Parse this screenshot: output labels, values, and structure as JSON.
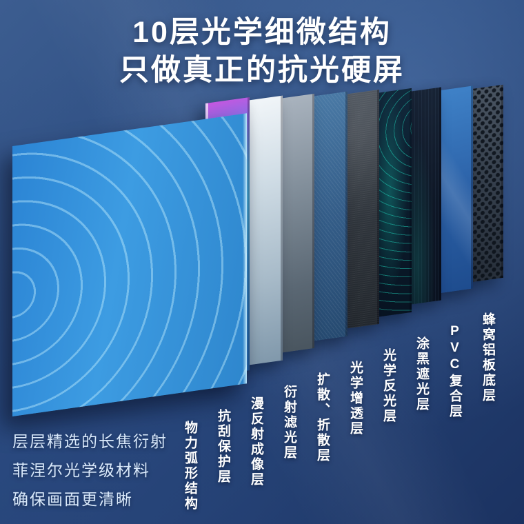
{
  "title": {
    "line1": "10层光学细微结构",
    "line2": "只做真正的抗光硬屏"
  },
  "layers": [
    {
      "id": 1,
      "label": "物力弧形结构",
      "variant": "fresnel"
    },
    {
      "id": 2,
      "label": "抗刮保护层",
      "variant": "protect"
    },
    {
      "id": 3,
      "label": "漫反射成像层",
      "variant": "diffuse"
    },
    {
      "id": 4,
      "label": "衍射滤光层",
      "variant": "filter"
    },
    {
      "id": 5,
      "label": "扩散、折散层",
      "variant": "spread"
    },
    {
      "id": 6,
      "label": "光学增透层",
      "variant": "antireflect"
    },
    {
      "id": 7,
      "label": "光学反光层",
      "variant": "reflect"
    },
    {
      "id": 8,
      "label": "涂黑遮光层",
      "variant": "blackout"
    },
    {
      "id": 9,
      "label": "PVC复合层",
      "variant": "pvc"
    },
    {
      "id": 10,
      "label": "蜂窝铝板底层",
      "variant": "honeycomb"
    }
  ],
  "footer": {
    "line1": "层层精选的长焦衍射",
    "line2": "菲涅尔光学级材料",
    "line3": "确保画面更清晰"
  },
  "colors": {
    "background_top": "#3c5d90",
    "background_bottom": "#1b3261",
    "title_text": "#ffffff",
    "label_text": "#ffffff",
    "footer_text": "#d9e9fb",
    "front_panel_blue": "#2f8cd8",
    "accent_teal": "#20e0c4",
    "accent_magenta": "#c757e0"
  }
}
